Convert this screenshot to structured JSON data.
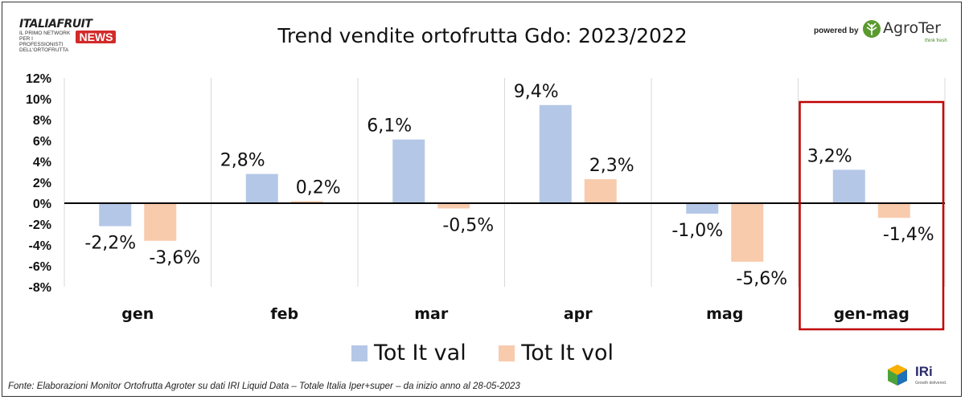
{
  "header": {
    "title": "Trend vendite ortofrutta Gdo: 2023/2022",
    "logo_left_main": "ITALIAFRUIT",
    "logo_left_small": "IL PRIMO NETWORK PER I PROFESSIONISTI DELL'ORTOFRUTTA",
    "logo_left_news": "NEWS",
    "powered_by": "powered by",
    "logo_right": "AgroTer",
    "logo_right_sub": "think fresh"
  },
  "footer": {
    "source": "Fonte: Elaborazioni Monitor Ortofrutta Agroter su dati IRI Liquid Data – Totale Italia Iper+super –  da inizio anno al 28-05-2023",
    "iri_logo": "IRi",
    "iri_sub": "Growth delivered."
  },
  "colors": {
    "val": "#b4c7e7",
    "vol": "#f8cbad",
    "highlight": "#c00000",
    "grid": "#d9d9d9",
    "zero_line": "#000000"
  },
  "chart_data": {
    "type": "bar",
    "title": "Trend vendite ortofrutta Gdo: 2023/2022",
    "categories": [
      "gen",
      "feb",
      "mar",
      "apr",
      "mag",
      "gen-mag"
    ],
    "series": [
      {
        "name": "Tot It val",
        "values": [
          -2.2,
          2.8,
          6.1,
          9.4,
          -1.0,
          3.2
        ],
        "labels": [
          "-2,2%",
          "2,8%",
          "6,1%",
          "9,4%",
          "-1,0%",
          "3,2%"
        ]
      },
      {
        "name": "Tot It vol",
        "values": [
          -3.6,
          0.2,
          -0.5,
          2.3,
          -5.6,
          -1.4
        ],
        "labels": [
          "-3,6%",
          "0,2%",
          "-0,5%",
          "2,3%",
          "-5,6%",
          "-1,4%"
        ]
      }
    ],
    "ylim": [
      -8,
      12
    ],
    "yticks": [
      12,
      10,
      8,
      6,
      4,
      2,
      0,
      -2,
      -4,
      -6,
      -8
    ],
    "ytick_labels": [
      "12%",
      "10%",
      "8%",
      "6%",
      "4%",
      "2%",
      "0%",
      "-2%",
      "-4%",
      "-6%",
      "-8%"
    ],
    "highlighted_category": "gen-mag",
    "legend_position": "bottom",
    "grid": "vertical"
  }
}
